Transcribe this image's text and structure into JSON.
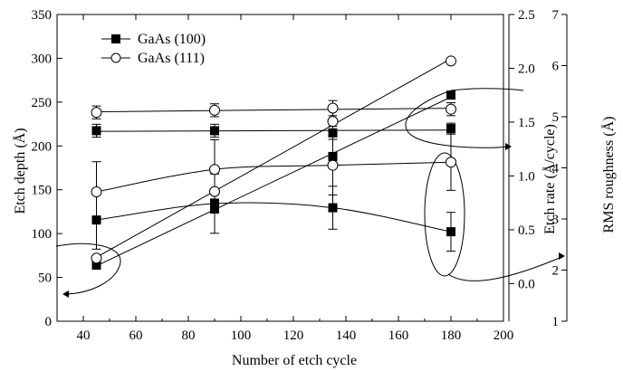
{
  "chart_data": {
    "type": "scatter",
    "xlabel": "Number of etch cycle",
    "ylabel": "Etch depth (Å)",
    "y2label": "Etch rate (Å/cycle)",
    "y3label": "RMS roughness (Å)",
    "xlim": [
      30,
      200
    ],
    "ylim": [
      0,
      350
    ],
    "y2lim": [
      -0.35,
      2.5
    ],
    "y3lim": [
      1,
      7
    ],
    "x_ticks": [
      "40",
      "60",
      "80",
      "100",
      "120",
      "140",
      "160",
      "180",
      "200"
    ],
    "y_ticks": [
      "0",
      "50",
      "100",
      "150",
      "200",
      "250",
      "300",
      "350"
    ],
    "y2_ticks": [
      "0.0",
      "0.5",
      "1.0",
      "1.5",
      "2.0",
      "2.5"
    ],
    "y3_ticks": [
      "1",
      "2",
      "3",
      "4",
      "5",
      "6",
      "7"
    ],
    "legend": {
      "position": "top-left",
      "entries": [
        "GaAs (100)",
        "GaAs (111)"
      ]
    },
    "series": [
      {
        "name": "GaAs (100)",
        "marker": "filled-square",
        "groups": [
          {
            "quantity": "Etch depth",
            "axis": "left",
            "x": [
              45,
              90,
              135,
              180
            ],
            "y": [
              64,
              128,
              188,
              258
            ],
            "err": [
              0,
              0,
              0,
              0
            ],
            "fit": "line"
          },
          {
            "quantity": "Etch rate",
            "axis": "right1",
            "x": [
              45,
              90,
              135,
              180
            ],
            "y": [
              1.42,
              1.42,
              1.4,
              1.44
            ],
            "err": [
              0.06,
              0.06,
              0.06,
              0.05
            ],
            "fit": "line"
          },
          {
            "quantity": "RMS roughness",
            "axis": "right2",
            "x": [
              45,
              90,
              135,
              180
            ],
            "y": [
              2.98,
              3.3,
              3.22,
              2.75
            ],
            "err": [
              0.57,
              0.58,
              0.42,
              0.38
            ],
            "fit": "curve"
          }
        ]
      },
      {
        "name": "GaAs (111)",
        "marker": "open-circle",
        "groups": [
          {
            "quantity": "Etch depth",
            "axis": "left",
            "x": [
              45,
              90,
              135,
              180
            ],
            "y": [
              72,
              148,
              228,
              297
            ],
            "err": [
              0,
              0,
              0,
              0
            ],
            "fit": "line"
          },
          {
            "quantity": "Etch rate",
            "axis": "right1",
            "x": [
              45,
              90,
              135,
              180
            ],
            "y": [
              1.59,
              1.61,
              1.63,
              1.62
            ],
            "err": [
              0.06,
              0.06,
              0.07,
              0.06
            ],
            "fit": "line"
          },
          {
            "quantity": "RMS roughness",
            "axis": "right2",
            "x": [
              45,
              90,
              135,
              180
            ],
            "y": [
              3.53,
              3.97,
              4.05,
              4.11
            ],
            "err": [
              0.59,
              0.58,
              0.58,
              0.55
            ],
            "fit": "curve"
          }
        ]
      }
    ],
    "annotations": [
      "ellipse around GaAs (111) etch-rate points with arrow to Etch rate axis",
      "ellipse around points at x = 180 with arrow to RMS roughness axis",
      "ellipse left of x = 45 with arrow to Etch depth axis"
    ]
  }
}
